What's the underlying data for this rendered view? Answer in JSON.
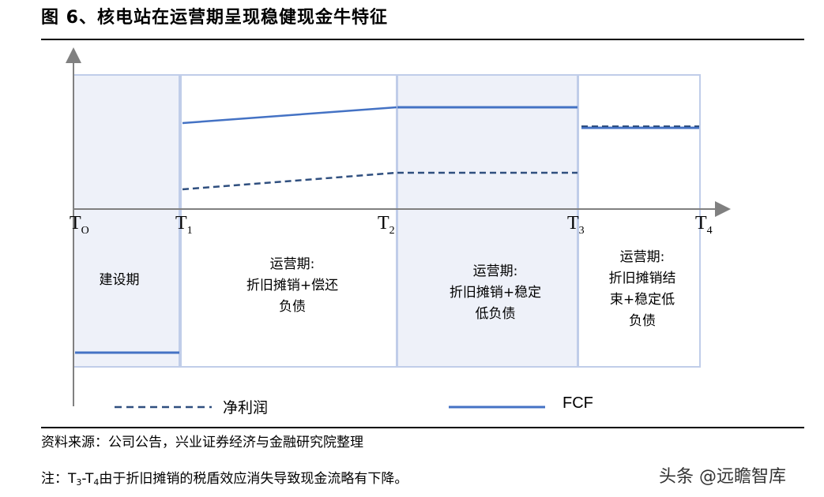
{
  "title": "图 6、核电站在运营期呈现稳健现金牛特征",
  "ticks": [
    {
      "base": "T",
      "sub": "O"
    },
    {
      "base": "T",
      "sub": "1"
    },
    {
      "base": "T",
      "sub": "2"
    },
    {
      "base": "T",
      "sub": "3"
    },
    {
      "base": "T",
      "sub": "4"
    }
  ],
  "phases": [
    {
      "lines": [
        "建设期"
      ]
    },
    {
      "lines": [
        "运营期:",
        "折旧摊销+偿还",
        "负债"
      ]
    },
    {
      "lines": [
        "运营期:",
        "折旧摊销+稳定",
        "低负债"
      ]
    },
    {
      "lines": [
        "运营期:",
        "折旧摊销结",
        "束+稳定低",
        "负债"
      ]
    }
  ],
  "legend": {
    "net_profit": "净利润",
    "fcf": "FCF"
  },
  "colors": {
    "line": "#4472c4",
    "dashed": "#2f4f7f",
    "shaded_fill": "#eef1f9",
    "box_border": "#c0cde9"
  },
  "source": "资料来源：公司公告，兴业证券经济与金融研究院整理",
  "note": {
    "prefix": "注：",
    "t3": "T",
    "t3_sub": "3",
    "dash": "-",
    "t4": "T",
    "t4_sub": "4",
    "text": "由于折旧摊销的税盾效应消失导致现金流略有下降。"
  },
  "watermark": "头条 @远瞻智库"
}
